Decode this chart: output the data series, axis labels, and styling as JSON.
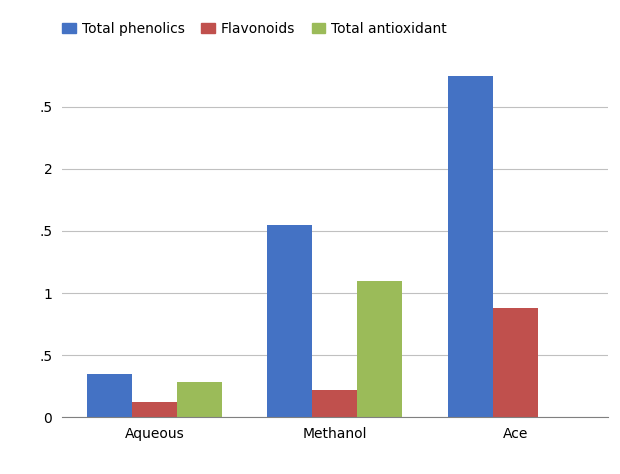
{
  "categories": [
    "Aqueous",
    "Methanol",
    "Ace"
  ],
  "series": [
    {
      "label": "Total phenolics",
      "color": "#4472C4",
      "values": [
        0.35,
        1.55,
        2.85
      ]
    },
    {
      "label": "Flavonoids",
      "color": "#C0504D",
      "values": [
        0.12,
        0.22,
        0.88
      ]
    },
    {
      "label": "Total antioxidant ",
      "color": "#9BBB59",
      "values": [
        0.28,
        1.1,
        0.0
      ]
    }
  ],
  "ylim": [
    0,
    2.75
  ],
  "yticks": [
    0,
    0.5,
    1,
    1.5,
    2,
    2.5
  ],
  "bar_width": 0.25,
  "background_color": "#ffffff",
  "grid_color": "#C0C0C0",
  "legend_fontsize": 10,
  "tick_fontsize": 10,
  "xlabel_fontsize": 10
}
